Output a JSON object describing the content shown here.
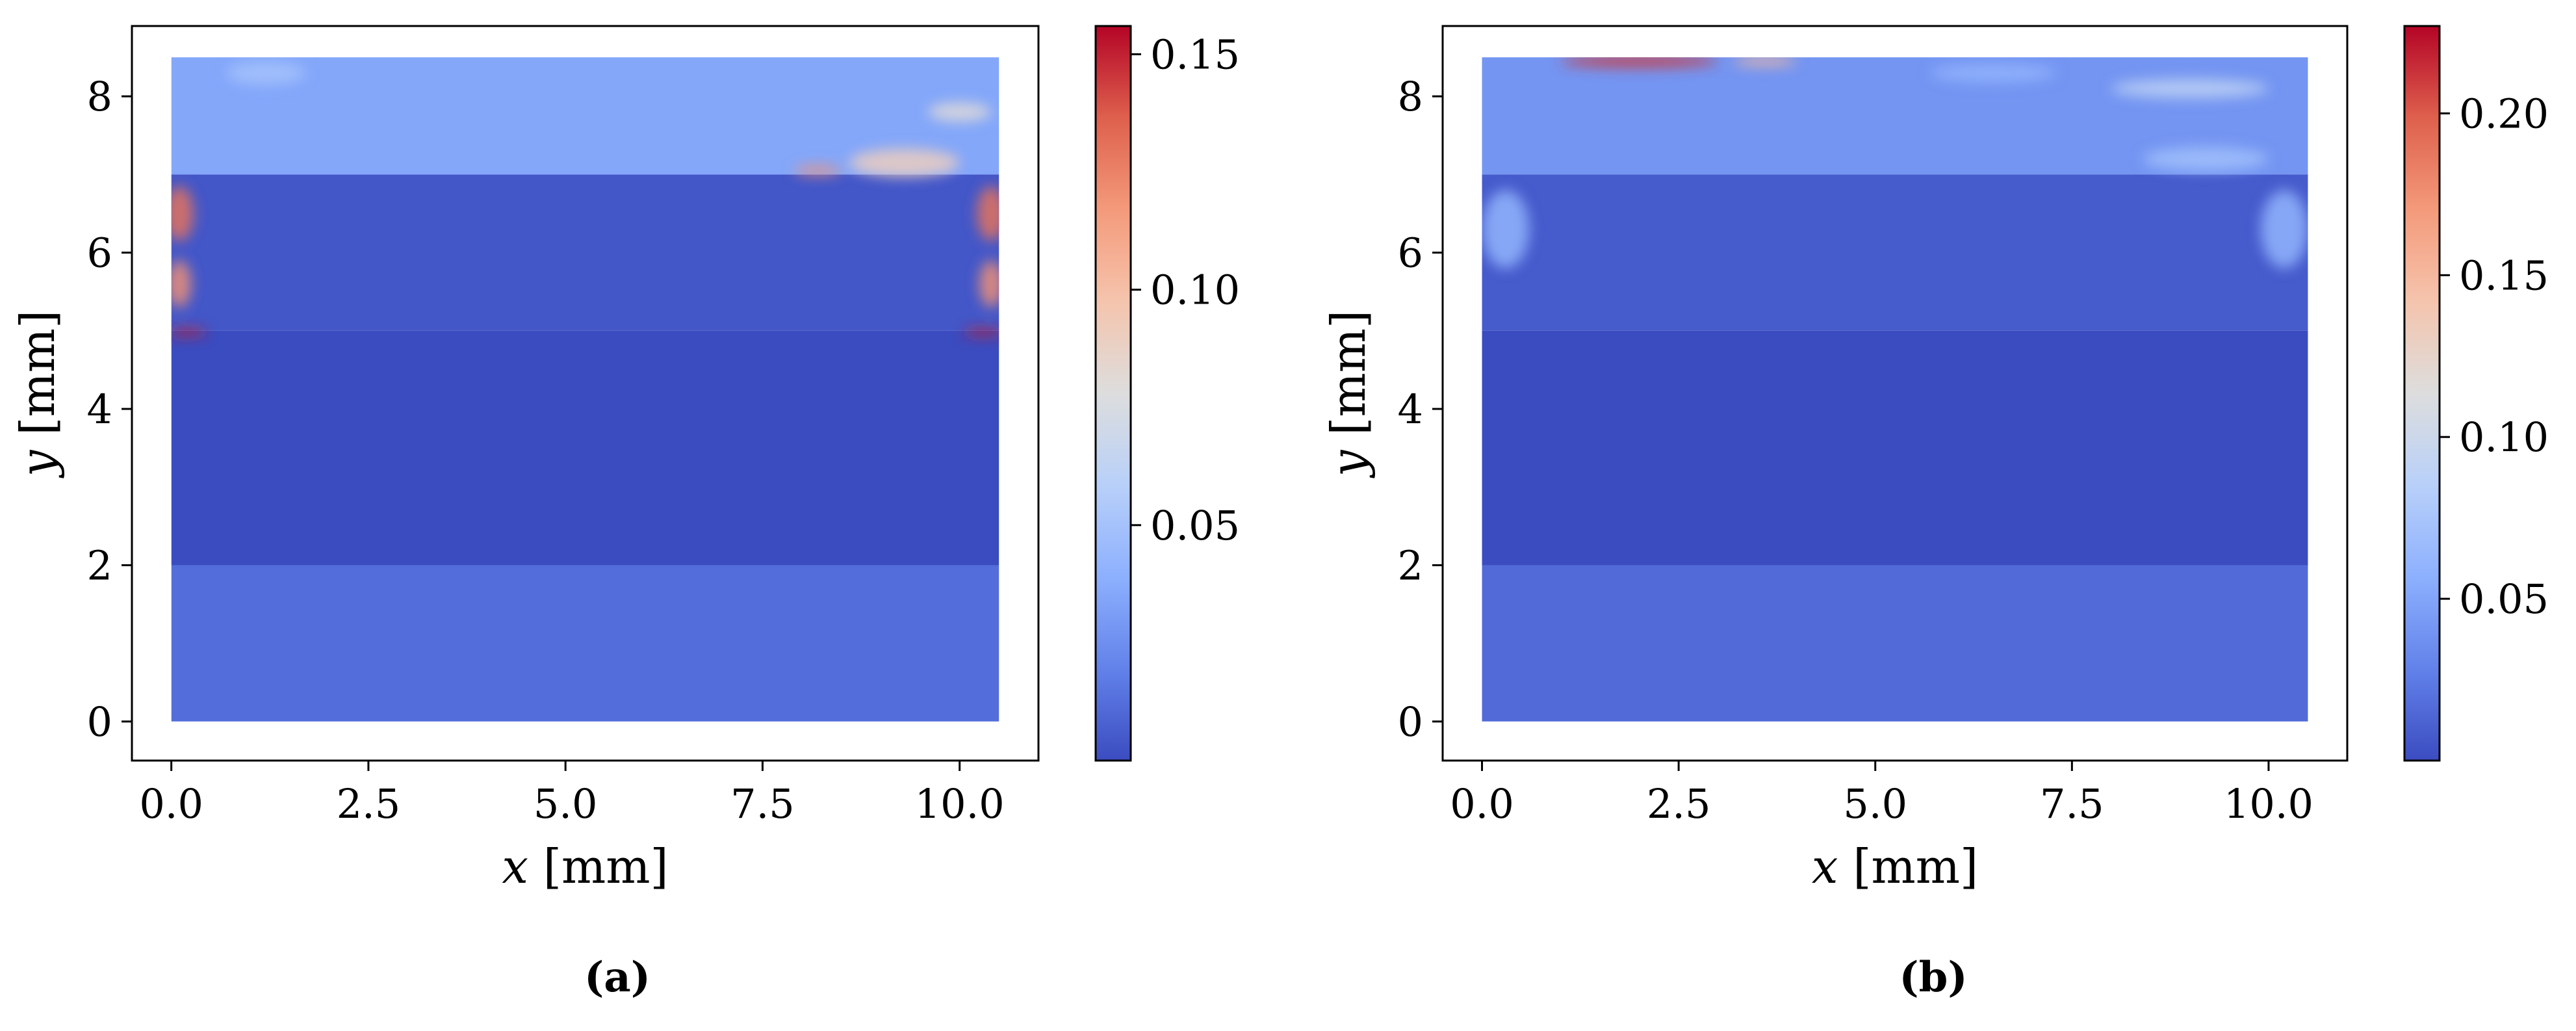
{
  "chart_data": [
    {
      "type": "heatmap",
      "panel_label": "(a)",
      "xlabel": "x [mm]",
      "ylabel": "y [mm]",
      "xlim": [
        -0.5,
        11.0
      ],
      "ylim": [
        -0.5,
        8.9
      ],
      "x_ticks": [
        0.0,
        2.5,
        5.0,
        7.5,
        10.0
      ],
      "x_tick_labels": [
        "0.0",
        "2.5",
        "5.0",
        "7.5",
        "10.0"
      ],
      "y_ticks": [
        0,
        2,
        4,
        6,
        8
      ],
      "y_tick_labels": [
        "0",
        "2",
        "4",
        "6",
        "8"
      ],
      "domain": {
        "x": [
          0.0,
          10.5
        ],
        "y": [
          0.0,
          8.5
        ]
      },
      "bands": [
        {
          "y": [
            0.0,
            2.0
          ],
          "level": 0.012
        },
        {
          "y": [
            2.0,
            5.0
          ],
          "level": 0.0
        },
        {
          "y": [
            5.0,
            7.0
          ],
          "level": 0.004
        },
        {
          "y": [
            7.0,
            8.5
          ],
          "level": 0.035
        }
      ],
      "hotspots": [
        {
          "x": 0.1,
          "y": 6.5,
          "rx": 0.18,
          "ry": 0.35,
          "value": 0.13
        },
        {
          "x": 0.1,
          "y": 5.6,
          "rx": 0.15,
          "ry": 0.3,
          "value": 0.12
        },
        {
          "x": 10.4,
          "y": 6.5,
          "rx": 0.18,
          "ry": 0.35,
          "value": 0.13
        },
        {
          "x": 10.4,
          "y": 5.6,
          "rx": 0.15,
          "ry": 0.3,
          "value": 0.12
        },
        {
          "x": 0.2,
          "y": 4.98,
          "rx": 0.25,
          "ry": 0.05,
          "value": 0.15
        },
        {
          "x": 10.3,
          "y": 4.98,
          "rx": 0.25,
          "ry": 0.05,
          "value": 0.15
        },
        {
          "x": 9.3,
          "y": 7.15,
          "rx": 0.7,
          "ry": 0.18,
          "value": 0.09
        },
        {
          "x": 8.2,
          "y": 7.05,
          "rx": 0.3,
          "ry": 0.06,
          "value": 0.12
        },
        {
          "x": 10.0,
          "y": 7.8,
          "rx": 0.4,
          "ry": 0.12,
          "value": 0.08
        },
        {
          "x": 1.2,
          "y": 8.3,
          "rx": 0.5,
          "ry": 0.15,
          "value": 0.05
        }
      ],
      "colorbar": {
        "min": 0.0,
        "max": 0.156,
        "ticks": [
          0.05,
          0.1,
          0.15
        ],
        "tick_labels": [
          "0.05",
          "0.10",
          "0.15"
        ],
        "colormap": "coolwarm"
      }
    },
    {
      "type": "heatmap",
      "panel_label": "(b)",
      "xlabel": "x [mm]",
      "ylabel": "y [mm]",
      "xlim": [
        -0.5,
        11.0
      ],
      "ylim": [
        -0.5,
        8.9
      ],
      "x_ticks": [
        0.0,
        2.5,
        5.0,
        7.5,
        10.0
      ],
      "x_tick_labels": [
        "0.0",
        "2.5",
        "5.0",
        "7.5",
        "10.0"
      ],
      "y_ticks": [
        0,
        2,
        4,
        6,
        8
      ],
      "y_tick_labels": [
        "0",
        "2",
        "4",
        "6",
        "8"
      ],
      "domain": {
        "x": [
          0.0,
          10.5
        ],
        "y": [
          0.0,
          8.5
        ]
      },
      "bands": [
        {
          "y": [
            0.0,
            2.0
          ],
          "level": 0.016
        },
        {
          "y": [
            2.0,
            5.0
          ],
          "level": 0.0
        },
        {
          "y": [
            5.0,
            7.0
          ],
          "level": 0.008
        },
        {
          "y": [
            7.0,
            8.5
          ],
          "level": 0.04
        }
      ],
      "hotspots": [
        {
          "x": 2.0,
          "y": 8.45,
          "rx": 1.0,
          "ry": 0.08,
          "value": 0.21
        },
        {
          "x": 3.6,
          "y": 8.45,
          "rx": 0.4,
          "ry": 0.06,
          "value": 0.15
        },
        {
          "x": 9.0,
          "y": 8.1,
          "rx": 1.0,
          "ry": 0.12,
          "value": 0.09
        },
        {
          "x": 9.2,
          "y": 7.2,
          "rx": 0.8,
          "ry": 0.15,
          "value": 0.07
        },
        {
          "x": 0.3,
          "y": 6.3,
          "rx": 0.3,
          "ry": 0.5,
          "value": 0.06
        },
        {
          "x": 10.2,
          "y": 6.3,
          "rx": 0.3,
          "ry": 0.5,
          "value": 0.06
        },
        {
          "x": 6.5,
          "y": 8.3,
          "rx": 0.8,
          "ry": 0.12,
          "value": 0.06
        }
      ],
      "colorbar": {
        "min": 0.0,
        "max": 0.227,
        "ticks": [
          0.05,
          0.1,
          0.15,
          0.2
        ],
        "tick_labels": [
          "0.05",
          "0.10",
          "0.15",
          "0.20"
        ],
        "colormap": "coolwarm"
      }
    }
  ]
}
